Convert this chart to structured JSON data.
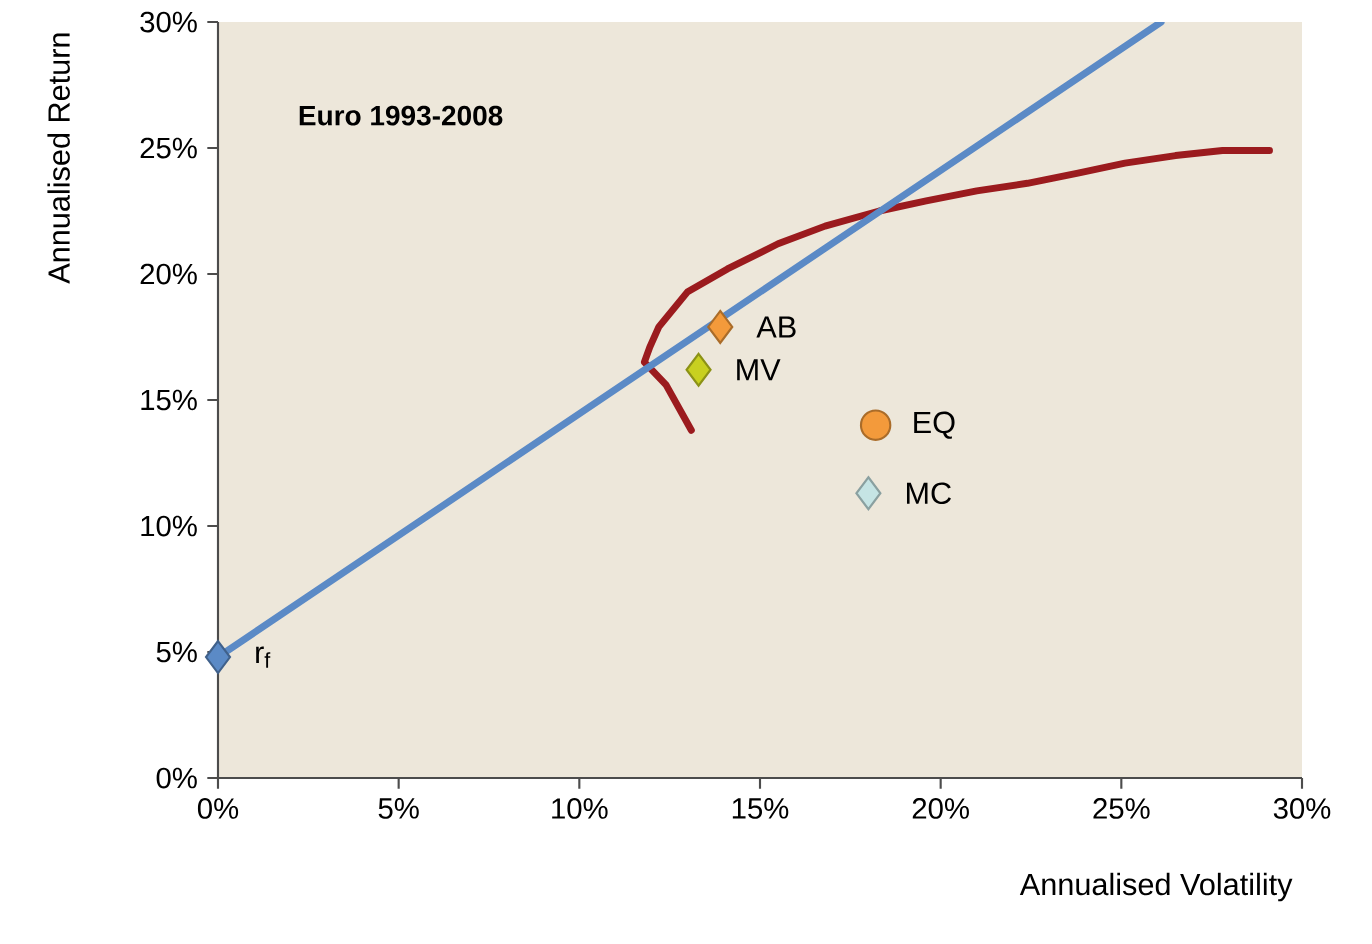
{
  "chart_data": {
    "type": "scatter",
    "title": "Euro 1993-2008",
    "xlabel": "Annualised Volatility",
    "ylabel": "Annualised Return",
    "xlim": [
      0,
      30
    ],
    "ylim": [
      0,
      30
    ],
    "xticks": [
      {
        "value": 0,
        "label": "0%"
      },
      {
        "value": 5,
        "label": "5%"
      },
      {
        "value": 10,
        "label": "10%"
      },
      {
        "value": 15,
        "label": "15%"
      },
      {
        "value": 20,
        "label": "20%"
      },
      {
        "value": 25,
        "label": "25%"
      },
      {
        "value": 30,
        "label": "30%"
      }
    ],
    "yticks": [
      {
        "value": 0,
        "label": "0%"
      },
      {
        "value": 5,
        "label": "5%"
      },
      {
        "value": 10,
        "label": "10%"
      },
      {
        "value": 15,
        "label": "15%"
      },
      {
        "value": 20,
        "label": "20%"
      },
      {
        "value": 25,
        "label": "25%"
      },
      {
        "value": 30,
        "label": "30%"
      }
    ],
    "grid": false,
    "series": [
      {
        "type": "line",
        "color": "#9b1b1e",
        "marker": "none",
        "line_style": "solid",
        "x": [
          13.1,
          12.4,
          11.8,
          11.95,
          12.2,
          13.0,
          14.1,
          15.5,
          16.8,
          18.3,
          19.6,
          21.0,
          22.4,
          23.8,
          25.1,
          26.5,
          27.8,
          29.1
        ],
        "values": [
          13.8,
          15.6,
          16.5,
          17.1,
          17.9,
          19.3,
          20.2,
          21.2,
          21.9,
          22.5,
          22.9,
          23.3,
          23.6,
          24.0,
          24.4,
          24.7,
          24.9,
          24.9
        ]
      },
      {
        "type": "line",
        "color": "#5b8ac6",
        "marker": "none",
        "line_style": "solid",
        "x": [
          0,
          26.1
        ],
        "values": [
          4.8,
          30
        ]
      },
      {
        "name": "AB",
        "color": "#f39a3b",
        "marker": "diamond",
        "x": [
          13.9
        ],
        "values": [
          17.9
        ]
      },
      {
        "name": "MV",
        "color": "#c8d020",
        "marker": "diamond",
        "x": [
          13.3
        ],
        "values": [
          16.2
        ]
      },
      {
        "name": "EQ",
        "color": "#f39a3b",
        "marker": "circle",
        "x": [
          18.2
        ],
        "values": [
          14.0
        ]
      },
      {
        "name": "MC",
        "color": "#c5e4e4",
        "marker": "diamond",
        "x": [
          18.0
        ],
        "values": [
          11.3
        ]
      },
      {
        "name": "r$_{f}$",
        "color": "#5b8ac6",
        "marker": "diamond",
        "x": [
          0
        ],
        "values": [
          4.8
        ]
      }
    ]
  }
}
